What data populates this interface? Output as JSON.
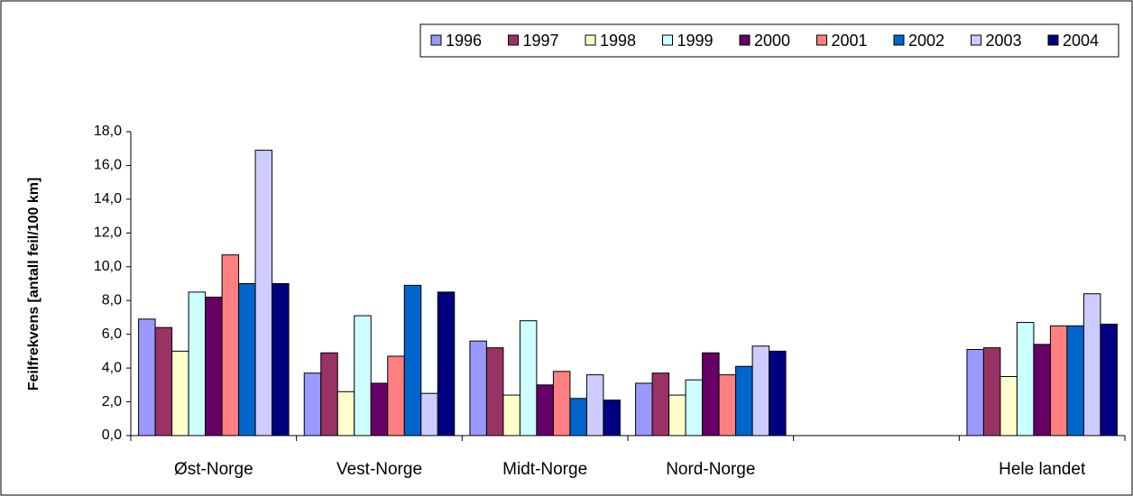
{
  "chart_data": {
    "type": "bar",
    "ylabel": "Feilfrekvens [antall feil/100 km]",
    "categories": [
      "Øst-Norge",
      "Vest-Norge",
      "Midt-Norge",
      "Nord-Norge",
      null,
      "Hele landet"
    ],
    "series": [
      {
        "name": "1996",
        "color": "#9999ff",
        "values": [
          6.9,
          3.7,
          5.6,
          3.1,
          null,
          5.1
        ]
      },
      {
        "name": "1997",
        "color": "#993366",
        "values": [
          6.4,
          4.9,
          5.2,
          3.7,
          null,
          5.2
        ]
      },
      {
        "name": "1998",
        "color": "#ffffcc",
        "values": [
          5.0,
          2.6,
          2.4,
          2.4,
          null,
          3.5
        ]
      },
      {
        "name": "1999",
        "color": "#ccffff",
        "values": [
          8.5,
          7.1,
          6.8,
          3.3,
          null,
          6.7
        ]
      },
      {
        "name": "2000",
        "color": "#660066",
        "values": [
          8.2,
          3.1,
          3.0,
          4.9,
          null,
          5.4
        ]
      },
      {
        "name": "2001",
        "color": "#ff8080",
        "values": [
          10.7,
          4.7,
          3.8,
          3.6,
          null,
          6.5
        ]
      },
      {
        "name": "2002",
        "color": "#0066cc",
        "values": [
          9.0,
          8.9,
          2.2,
          4.1,
          null,
          6.5
        ]
      },
      {
        "name": "2003",
        "color": "#ccccff",
        "values": [
          16.9,
          2.5,
          3.6,
          5.3,
          null,
          8.4
        ]
      },
      {
        "name": "2004",
        "color": "#000080",
        "values": [
          9.0,
          8.5,
          2.1,
          5.0,
          null,
          6.6
        ]
      }
    ],
    "ylim": [
      0,
      18
    ],
    "yticks": [
      {
        "value": 0,
        "label": "0,0"
      },
      {
        "value": 2,
        "label": "2,0"
      },
      {
        "value": 4,
        "label": "4,0"
      },
      {
        "value": 6,
        "label": "6,0"
      },
      {
        "value": 8,
        "label": "8,0"
      },
      {
        "value": 10,
        "label": "10,0"
      },
      {
        "value": 12,
        "label": "12,0"
      },
      {
        "value": 14,
        "label": "14,0"
      },
      {
        "value": 16,
        "label": "16,0"
      },
      {
        "value": 18,
        "label": "18,0"
      }
    ],
    "legend": "top-right"
  }
}
